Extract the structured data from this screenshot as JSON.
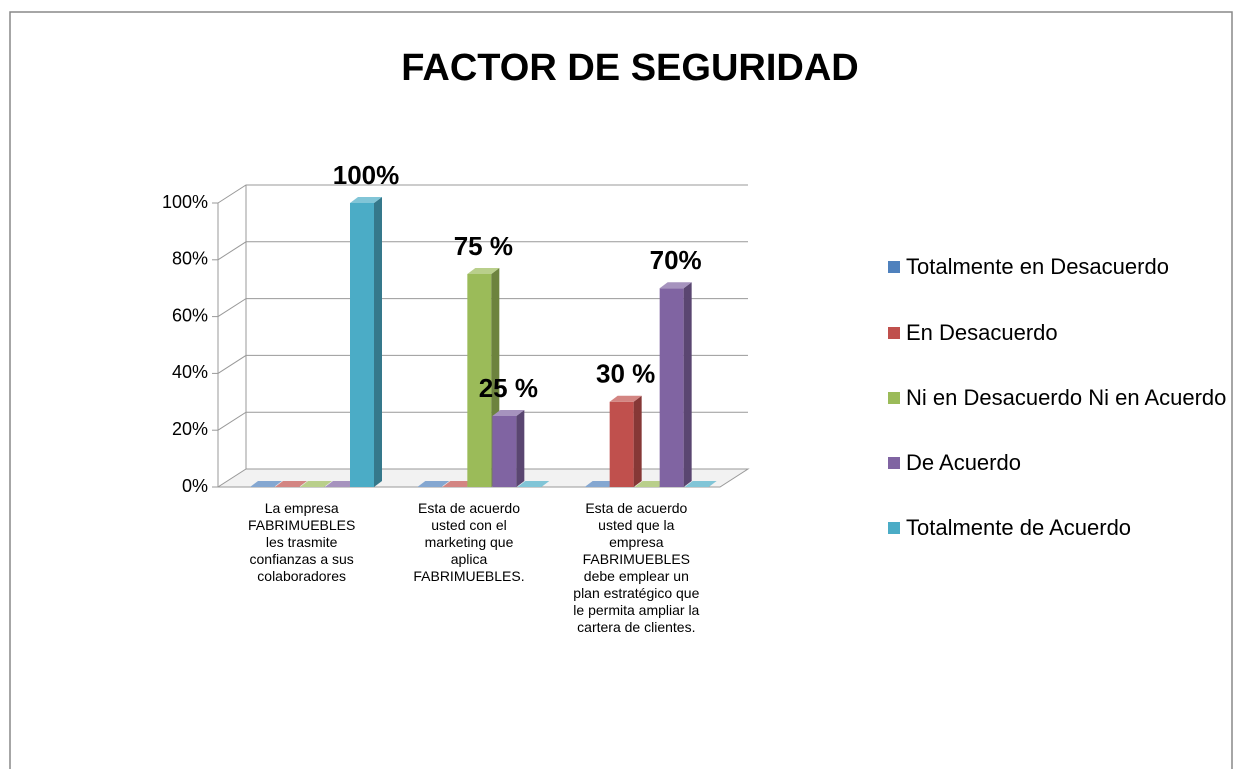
{
  "chart_data": {
    "type": "bar3d",
    "title": "FACTOR DE SEGURIDAD",
    "categories": [
      "La empresa FABRIMUEBLES les trasmite confianzas a sus colaboradores",
      "Esta de acuerdo usted con el marketing que aplica FABRIMUEBLES.",
      "Esta de acuerdo usted que la empresa FABRIMUEBLES debe emplear un plan estratégico que le permita ampliar la cartera de clientes."
    ],
    "series": [
      {
        "name": "Totalmente en Desacuerdo",
        "color": "#4f81bd",
        "values": [
          0,
          0,
          0
        ],
        "value_labels": [
          null,
          null,
          null
        ]
      },
      {
        "name": "En Desacuerdo",
        "color": "#c0504d",
        "values": [
          0,
          0,
          30
        ],
        "value_labels": [
          null,
          null,
          "30 %"
        ]
      },
      {
        "name": "Ni en Desacuerdo Ni en Acuerdo",
        "color": "#9bbb59",
        "values": [
          0,
          75,
          0
        ],
        "value_labels": [
          null,
          "75 %",
          null
        ]
      },
      {
        "name": "De Acuerdo",
        "color": "#8064a2",
        "values": [
          0,
          25,
          70
        ],
        "value_labels": [
          null,
          "25 %",
          "70%"
        ]
      },
      {
        "name": "Totalmente de Acuerdo",
        "color": "#4bacc6",
        "values": [
          100,
          0,
          0
        ],
        "value_labels": [
          "100%",
          null,
          null
        ]
      }
    ],
    "ylim": [
      0,
      100
    ],
    "yticks": [
      {
        "value": 0,
        "label": "0%"
      },
      {
        "value": 20,
        "label": "20%"
      },
      {
        "value": 40,
        "label": "40%"
      },
      {
        "value": 60,
        "label": "60%"
      },
      {
        "value": 80,
        "label": "80%"
      },
      {
        "value": 100,
        "label": "100%"
      }
    ],
    "grid": true,
    "legend": "right"
  }
}
